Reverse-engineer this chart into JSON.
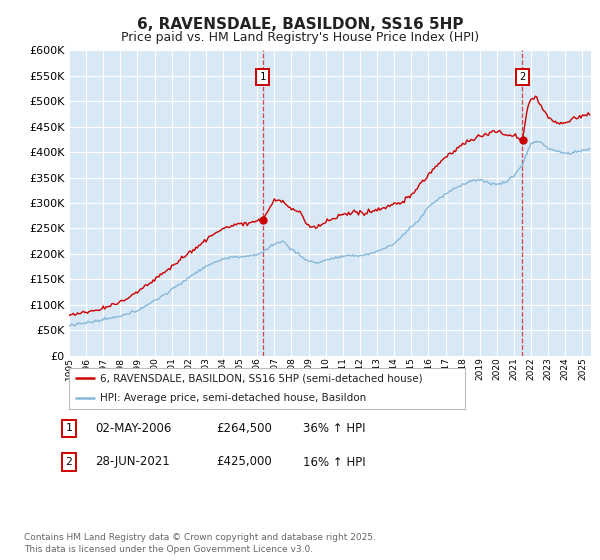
{
  "title": "6, RAVENSDALE, BASILDON, SS16 5HP",
  "subtitle": "Price paid vs. HM Land Registry's House Price Index (HPI)",
  "ylim": [
    0,
    600000
  ],
  "yticks": [
    0,
    50000,
    100000,
    150000,
    200000,
    250000,
    300000,
    350000,
    400000,
    450000,
    500000,
    550000,
    600000
  ],
  "xlim_start": 1995.0,
  "xlim_end": 2025.5,
  "fig_bg_color": "#ffffff",
  "plot_bg_color": "#d8e8f5",
  "grid_color": "#ffffff",
  "red_line_color": "#cc0000",
  "blue_line_color": "#88b8d8",
  "marker1_date": 2006.33,
  "marker2_date": 2021.49,
  "legend_label1": "6, RAVENSDALE, BASILDON, SS16 5HP (semi-detached house)",
  "legend_label2": "HPI: Average price, semi-detached house, Basildon",
  "annotation1_label": "1",
  "annotation1_date": "02-MAY-2006",
  "annotation1_price": "£264,500",
  "annotation1_hpi": "36% ↑ HPI",
  "annotation2_label": "2",
  "annotation2_date": "28-JUN-2021",
  "annotation2_price": "£425,000",
  "annotation2_hpi": "16% ↑ HPI",
  "footer_line1": "Contains HM Land Registry data © Crown copyright and database right 2025.",
  "footer_line2": "This data is licensed under the Open Government Licence v3.0.",
  "title_fontsize": 11,
  "subtitle_fontsize": 9
}
